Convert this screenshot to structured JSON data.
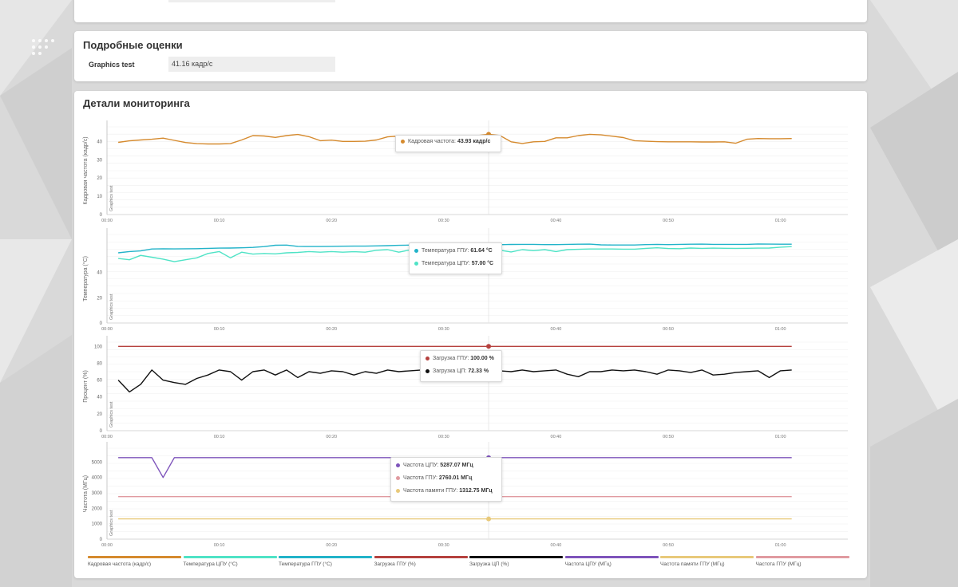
{
  "scores": {
    "title": "Подробные оценки",
    "test_label": "Graphics test",
    "test_value": "41.16 кадр/с"
  },
  "monitoring": {
    "title": "Детали мониторинга",
    "x_ticks": [
      "00:00",
      "00:10",
      "00:20",
      "00:30",
      "00:40",
      "00:50",
      "01:00"
    ],
    "test_name": "Graphics test"
  },
  "colors": {
    "fps": "#d58a2e",
    "cpu_temp": "#4fe3c6",
    "gpu_temp": "#22b3c9",
    "gpu_load": "#b5413e",
    "cpu_load": "#111111",
    "cpu_freq": "#7e54bb",
    "gpu_mem_freq": "#e8c97a",
    "gpu_freq": "#e09aa0"
  },
  "tooltips": {
    "fps": [
      {
        "label": "Кадровая частота: ",
        "value": "43.93 кадр/с",
        "color": "#d58a2e"
      }
    ],
    "temp": [
      {
        "label": "Температура ГПУ: ",
        "value": "61.64 °C",
        "color": "#22b3c9"
      },
      {
        "label": "Температура ЦПУ: ",
        "value": "57.00 °C",
        "color": "#4fe3c6"
      }
    ],
    "load": [
      {
        "label": "Загрузка ГПУ: ",
        "value": "100.00 %",
        "color": "#b5413e"
      },
      {
        "label": "Загрузка ЦП: ",
        "value": "72.33 %",
        "color": "#111111"
      }
    ],
    "freq": [
      {
        "label": "Частота ЦПУ: ",
        "value": "5287.07 МГц",
        "color": "#7e54bb"
      },
      {
        "label": "Частота ГПУ: ",
        "value": "2760.01 МГц",
        "color": "#e09aa0"
      },
      {
        "label": "Частота памяти ГПУ: ",
        "value": "1312.75 МГц",
        "color": "#e8c97a"
      }
    ]
  },
  "legend": [
    {
      "label": "Кадровая частота (кадр/с)",
      "color": "#d58a2e"
    },
    {
      "label": "Температура ЦПУ (°C)",
      "color": "#4fe3c6"
    },
    {
      "label": "Температура ГПУ (°C)",
      "color": "#22b3c9"
    },
    {
      "label": "Загрузка ГПУ (%)",
      "color": "#b5413e"
    },
    {
      "label": "Загрузка ЦП (%)",
      "color": "#111111"
    },
    {
      "label": "Частота ЦПУ (МГц)",
      "color": "#7e54bb"
    },
    {
      "label": "Частота памяти ГПУ (МГц)",
      "color": "#e8c97a"
    },
    {
      "label": "Частота ГПУ (МГц)",
      "color": "#e09aa0"
    }
  ],
  "chart_data": [
    {
      "type": "line",
      "ylabel": "Кадровая частота (кадр/с)",
      "ylim": [
        0,
        48
      ],
      "yticks": [
        0,
        10,
        20,
        30,
        40
      ],
      "xlim": [
        0,
        66
      ],
      "x": [
        1,
        2,
        3,
        4,
        5,
        6,
        7,
        8,
        9,
        10,
        11,
        12,
        13,
        14,
        15,
        16,
        17,
        18,
        19,
        20,
        21,
        22,
        23,
        24,
        25,
        26,
        27,
        28,
        29,
        30,
        31,
        32,
        33,
        34,
        35,
        36,
        37,
        38,
        39,
        40,
        41,
        42,
        43,
        44,
        45,
        46,
        47,
        48,
        49,
        50,
        51,
        52,
        53,
        54,
        55,
        56,
        57,
        58,
        59,
        60,
        61
      ],
      "series": [
        {
          "name": "Кадровая частота (кадр/с)",
          "values": [
            39.5,
            40.3,
            40.8,
            41.2,
            41.8,
            40.6,
            39.4,
            38.8,
            38.6,
            38.6,
            38.8,
            40.8,
            43.2,
            43.0,
            42.2,
            43.2,
            43.8,
            42.6,
            40.4,
            40.7,
            40.0,
            40.0,
            40.1,
            40.8,
            42.5,
            43.0,
            42.6,
            42.9,
            42.0,
            42.2,
            42.8,
            42.9,
            43.2,
            43.9,
            43.3,
            39.8,
            38.9,
            39.8,
            40.0,
            42.0,
            42.0,
            43.2,
            43.9,
            43.6,
            42.9,
            42.1,
            40.4,
            40.1,
            39.9,
            39.8,
            39.8,
            39.8,
            39.7,
            39.7,
            39.8,
            39.0,
            41.2,
            41.6,
            41.5,
            41.5,
            41.6
          ],
          "color": "#d58a2e"
        }
      ]
    },
    {
      "type": "line",
      "ylabel": "Температура (°C)",
      "ylim": [
        0,
        70
      ],
      "yticks": [
        0,
        20,
        40
      ],
      "xlim": [
        0,
        66
      ],
      "x": [
        1,
        2,
        3,
        4,
        5,
        6,
        7,
        8,
        9,
        10,
        11,
        12,
        13,
        14,
        15,
        16,
        17,
        18,
        19,
        20,
        21,
        22,
        23,
        24,
        25,
        26,
        27,
        28,
        29,
        30,
        31,
        32,
        33,
        34,
        35,
        36,
        37,
        38,
        39,
        40,
        41,
        42,
        43,
        44,
        45,
        46,
        47,
        48,
        49,
        50,
        51,
        52,
        53,
        54,
        55,
        56,
        57,
        58,
        59,
        60,
        61
      ],
      "series": [
        {
          "name": "Температура ГПУ (°C)",
          "values": [
            55.5,
            56.5,
            57.0,
            58.5,
            58.7,
            58.6,
            58.7,
            58.8,
            59.0,
            59.2,
            59.3,
            59.5,
            59.8,
            60.4,
            61.5,
            61.6,
            60.6,
            60.5,
            60.5,
            60.6,
            60.7,
            60.8,
            60.8,
            61.0,
            61.2,
            61.4,
            61.6,
            61.6,
            61.2,
            61.4,
            61.5,
            61.8,
            61.9,
            61.64,
            61.9,
            62.1,
            62.2,
            62.2,
            62.0,
            62.0,
            62.2,
            62.3,
            62.4,
            61.8,
            61.7,
            61.7,
            61.7,
            62.0,
            62.2,
            62.0,
            62.2,
            62.3,
            62.4,
            62.2,
            62.2,
            62.2,
            62.2,
            62.5,
            62.4,
            62.3,
            62.3
          ],
          "color": "#22b3c9"
        },
        {
          "name": "Температура ЦПУ (°C)",
          "values": [
            51.0,
            50.0,
            53.5,
            52.0,
            50.5,
            48.5,
            50.0,
            51.5,
            55.0,
            56.5,
            51.5,
            56.0,
            54.5,
            55.0,
            54.7,
            55.5,
            55.8,
            56.5,
            56.0,
            56.5,
            56.0,
            56.4,
            56.0,
            57.5,
            58.0,
            56.0,
            57.8,
            57.5,
            58.0,
            57.5,
            58.0,
            58.4,
            57.8,
            57.0,
            57.6,
            56.2,
            58.0,
            57.2,
            58.0,
            56.5,
            58.0,
            58.3,
            58.5,
            58.5,
            58.5,
            58.4,
            58.4,
            59.0,
            59.5,
            58.9,
            58.8,
            59.3,
            59.0,
            59.2,
            59.1,
            59.0,
            59.1,
            59.2,
            59.3,
            60.0,
            60.4
          ],
          "color": "#4fe3c6"
        }
      ]
    },
    {
      "type": "line",
      "ylabel": "Процент (%)",
      "ylim": [
        0,
        105
      ],
      "yticks": [
        0,
        20,
        40,
        60,
        80,
        100
      ],
      "xlim": [
        0,
        66
      ],
      "x": [
        1,
        2,
        3,
        4,
        5,
        6,
        7,
        8,
        9,
        10,
        11,
        12,
        13,
        14,
        15,
        16,
        17,
        18,
        19,
        20,
        21,
        22,
        23,
        24,
        25,
        26,
        27,
        28,
        29,
        30,
        31,
        32,
        33,
        34,
        35,
        36,
        37,
        38,
        39,
        40,
        41,
        42,
        43,
        44,
        45,
        46,
        47,
        48,
        49,
        50,
        51,
        52,
        53,
        54,
        55,
        56,
        57,
        58,
        59,
        60,
        61
      ],
      "series": [
        {
          "name": "Загрузка ГПУ (%)",
          "values": [
            100,
            100,
            100,
            100,
            100,
            100,
            100,
            100,
            100,
            100,
            100,
            100,
            100,
            100,
            100,
            100,
            100,
            100,
            100,
            100,
            100,
            100,
            100,
            100,
            100,
            100,
            100,
            100,
            100,
            100,
            100,
            100,
            100,
            100,
            100,
            100,
            100,
            100,
            100,
            100,
            100,
            100,
            100,
            100,
            100,
            100,
            100,
            100,
            100,
            100,
            100,
            100,
            100,
            100,
            100,
            100,
            100,
            100,
            100,
            100,
            100
          ],
          "color": "#b5413e"
        },
        {
          "name": "Загрузка ЦП (%)",
          "values": [
            60,
            46,
            55,
            72,
            60,
            57,
            55,
            62,
            66,
            72,
            70,
            60,
            70,
            72,
            66,
            72,
            63,
            70,
            68,
            71,
            70,
            66,
            70,
            68,
            72,
            70,
            71,
            72,
            70,
            72,
            70,
            71,
            71,
            72.33,
            71,
            70,
            72,
            70,
            71,
            72,
            67,
            64,
            70,
            70,
            72,
            71,
            72,
            70,
            67,
            72,
            71,
            69,
            72,
            66,
            67,
            69,
            70,
            71,
            63,
            71,
            72
          ],
          "color": "#111111"
        }
      ]
    },
    {
      "type": "line",
      "ylabel": "Частота (МГц)",
      "ylim": [
        0,
        5900
      ],
      "yticks": [
        0,
        1000,
        2000,
        3000,
        4000,
        5000
      ],
      "xlim": [
        0,
        66
      ],
      "x": [
        1,
        2,
        3,
        4,
        5,
        6,
        7,
        8,
        9,
        10,
        11,
        12,
        13,
        14,
        15,
        16,
        17,
        18,
        19,
        20,
        21,
        22,
        23,
        24,
        25,
        26,
        27,
        28,
        29,
        30,
        31,
        32,
        33,
        34,
        35,
        36,
        37,
        38,
        39,
        40,
        41,
        42,
        43,
        44,
        45,
        46,
        47,
        48,
        49,
        50,
        51,
        52,
        53,
        54,
        55,
        56,
        57,
        58,
        59,
        60,
        61
      ],
      "series": [
        {
          "name": "Частота ЦПУ (МГц)",
          "values": [
            5287,
            5287,
            5287,
            5287,
            4000,
            5287,
            5287,
            5287,
            5287,
            5287,
            5287,
            5287,
            5287,
            5287,
            5287,
            5287,
            5287,
            5287,
            5287,
            5287,
            5287,
            5287,
            5287,
            5287,
            5287,
            5287,
            5287,
            5287,
            5287,
            5287,
            5287,
            5287,
            5287,
            5287.07,
            5287,
            5287,
            5287,
            5287,
            5287,
            5287,
            5287,
            5287,
            5287,
            5287,
            5287,
            5287,
            5287,
            5287,
            5287,
            5287,
            5287,
            5287,
            5287,
            5287,
            5287,
            5287,
            5287,
            5287,
            5287,
            5287,
            5287
          ],
          "color": "#7e54bb"
        },
        {
          "name": "Частота ГПУ (МГц)",
          "values": [
            2760,
            2760,
            2760,
            2760,
            2760,
            2760,
            2760,
            2760,
            2760,
            2760,
            2760,
            2760,
            2760,
            2760,
            2760,
            2760,
            2760,
            2760,
            2760,
            2760,
            2760,
            2760,
            2760,
            2760,
            2760,
            2760,
            2760,
            2760,
            2760,
            2760,
            2760,
            2760,
            2760,
            2760.01,
            2760,
            2760,
            2760,
            2760,
            2760,
            2760,
            2760,
            2760,
            2760,
            2760,
            2760,
            2760,
            2760,
            2760,
            2760,
            2760,
            2760,
            2760,
            2760,
            2760,
            2760,
            2760,
            2760,
            2760,
            2760,
            2760,
            2760
          ],
          "color": "#e09aa0"
        },
        {
          "name": "Частота памяти ГПУ (МГц)",
          "values": [
            1312,
            1312,
            1312,
            1312,
            1312,
            1312,
            1312,
            1312,
            1312,
            1312,
            1312,
            1312,
            1312,
            1312,
            1312,
            1312,
            1312,
            1312,
            1312,
            1312,
            1312,
            1312,
            1312,
            1312,
            1312,
            1312,
            1312,
            1312,
            1312,
            1312,
            1312,
            1312,
            1312,
            1312.75,
            1312,
            1312,
            1312,
            1312,
            1312,
            1312,
            1312,
            1312,
            1312,
            1312,
            1312,
            1312,
            1312,
            1312,
            1312,
            1312,
            1312,
            1312,
            1312,
            1312,
            1312,
            1312,
            1312,
            1312,
            1312,
            1312,
            1312
          ],
          "color": "#e8c97a"
        }
      ]
    }
  ]
}
